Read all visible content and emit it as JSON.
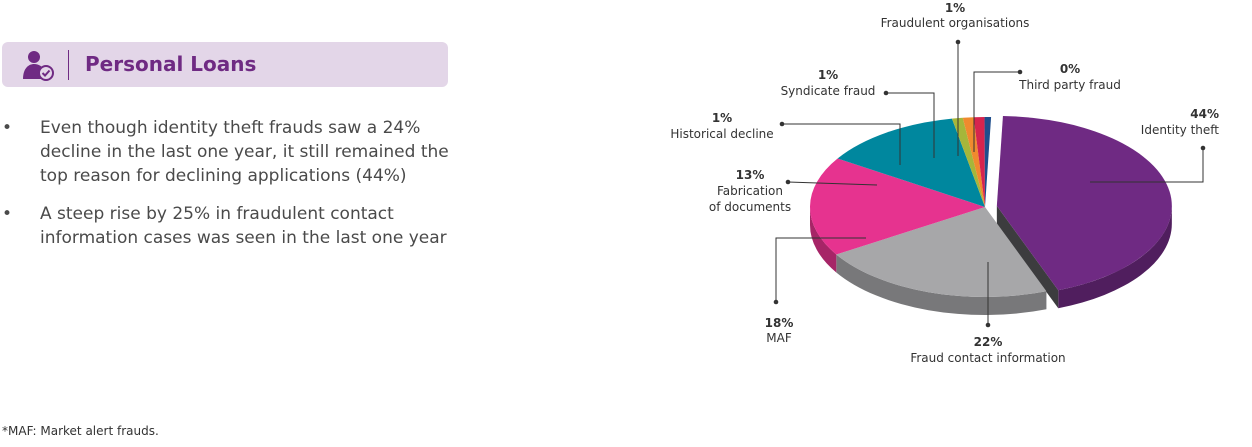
{
  "header": {
    "title": "Personal Loans",
    "icon": "user-check-icon"
  },
  "bullets": [
    "Even though identity theft frauds saw a 24% decline in the last one year, it still remained the top reason for declining applications (44%)",
    "A steep rise by 25% in fraudulent contact information cases was seen in the last one year"
  ],
  "footnote": "*MAF: Market alert frauds.",
  "chart_data": {
    "type": "pie",
    "style": "3d",
    "slices": [
      {
        "label_lines": [
          "Identity theft"
        ],
        "value": 44,
        "value_label": "44%",
        "color": "#6f2a83"
      },
      {
        "label_lines": [
          "Fraud contact information"
        ],
        "value": 22,
        "value_label": "22%",
        "color": "#a7a7a9"
      },
      {
        "label_lines": [
          "MAF"
        ],
        "value": 18,
        "value_label": "18%",
        "color": "#e6338f"
      },
      {
        "label_lines": [
          "Fabrication",
          "of documents"
        ],
        "value": 13,
        "value_label": "13%",
        "color": "#00879e"
      },
      {
        "label_lines": [
          "Historical decline"
        ],
        "value": 1,
        "value_label": "1%",
        "color": "#a6b63a"
      },
      {
        "label_lines": [
          "Syndicate fraud"
        ],
        "value": 1,
        "value_label": "1%",
        "color": "#f08a2e"
      },
      {
        "label_lines": [
          "Fraudulent organisations"
        ],
        "value": 1,
        "value_label": "1%",
        "color": "#d6244e"
      },
      {
        "label_lines": [
          "Third party fraud"
        ],
        "value": 0,
        "value_label": "0%",
        "color": "#1f4e8c"
      }
    ]
  }
}
